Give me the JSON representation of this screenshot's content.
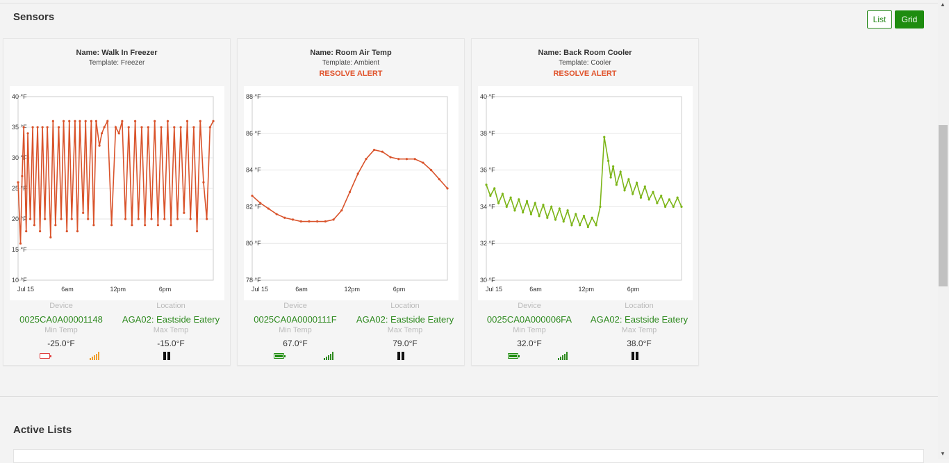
{
  "header": {
    "title": "Sensors",
    "list_label": "List",
    "grid_label": "Grid"
  },
  "chart_common": {
    "x_ticks": [
      "Jul 15",
      "6am",
      "12pm",
      "6pm"
    ]
  },
  "sensors": [
    {
      "name": "Name: Walk In Freezer",
      "template": "Template: Freezer",
      "alert": "",
      "device_label": "Device",
      "device": "0025CA0A00001148",
      "location_label": "Location",
      "location": "AGA02: Eastside Eatery",
      "min_label": "Min Temp",
      "min": "-25.0°F",
      "max_label": "Max Temp",
      "max": "-15.0°F",
      "battery": "low",
      "signal": "weak"
    },
    {
      "name": "Name: Room Air Temp",
      "template": "Template: Ambient",
      "alert": "RESOLVE ALERT",
      "device_label": "Device",
      "device": "0025CA0A0000111F",
      "location_label": "Location",
      "location": "AGA02: Eastside Eatery",
      "min_label": "Min Temp",
      "min": "67.0°F",
      "max_label": "Max Temp",
      "max": "79.0°F",
      "battery": "full",
      "signal": "strong"
    },
    {
      "name": "Name: Back Room Cooler",
      "template": "Template: Cooler",
      "alert": "RESOLVE ALERT",
      "device_label": "Device",
      "device": "0025CA0A000006FA",
      "location_label": "Location",
      "location": "AGA02: Eastside Eatery",
      "min_label": "Min Temp",
      "min": "32.0°F",
      "max_label": "Max Temp",
      "max": "38.0°F",
      "battery": "full",
      "signal": "strong"
    }
  ],
  "chart_data": [
    {
      "type": "line",
      "title": "Walk In Freezer",
      "color": "#d9532b",
      "y_ticks": [
        "10 °F",
        "15 °F",
        "20 °F",
        "25 °F",
        "30 °F",
        "35 °F",
        "40 °F"
      ],
      "ylim": [
        10,
        40
      ],
      "x_range_hours": [
        0,
        24
      ],
      "x": [
        0,
        0.3,
        0.5,
        0.7,
        1.0,
        1.2,
        1.5,
        1.8,
        2.0,
        2.4,
        2.7,
        3.0,
        3.3,
        3.6,
        4.0,
        4.3,
        4.6,
        5.0,
        5.3,
        5.6,
        6.0,
        6.3,
        6.6,
        7.0,
        7.3,
        7.6,
        8.0,
        8.3,
        8.6,
        9.0,
        9.3,
        9.6,
        10.0,
        10.3,
        10.6,
        11.0,
        11.5,
        12.0,
        12.4,
        12.8,
        13.2,
        13.6,
        14.0,
        14.4,
        14.8,
        15.2,
        15.6,
        16.0,
        16.4,
        16.8,
        17.2,
        17.6,
        18.0,
        18.4,
        18.8,
        19.2,
        19.6,
        20.0,
        20.4,
        20.8,
        21.2,
        21.6,
        22.0,
        22.4,
        22.8,
        23.2,
        23.6,
        24.0
      ],
      "values": [
        26,
        16,
        27,
        35,
        18,
        34,
        20,
        35,
        19,
        35,
        18,
        35,
        20,
        35,
        17,
        36,
        19,
        35,
        20,
        36,
        18,
        36,
        20,
        36,
        18,
        36,
        21,
        36,
        20,
        36,
        19,
        36,
        32,
        34,
        35,
        36,
        19,
        35,
        34,
        36,
        20,
        35,
        19,
        36,
        20,
        35,
        19,
        35,
        20,
        36,
        19,
        35,
        20,
        36,
        19,
        35,
        20,
        35,
        21,
        36,
        20,
        35,
        18,
        36,
        26,
        20,
        35,
        36
      ]
    },
    {
      "type": "line",
      "title": "Room Air Temp",
      "color": "#d9532b",
      "y_ticks": [
        "78 °F",
        "80 °F",
        "82 °F",
        "84 °F",
        "86 °F",
        "88 °F"
      ],
      "ylim": [
        78,
        88
      ],
      "x_range_hours": [
        0,
        24
      ],
      "x": [
        0,
        1,
        2,
        3,
        4,
        5,
        6,
        7,
        8,
        9,
        10,
        11,
        12,
        13,
        14,
        15,
        16,
        17,
        18,
        19,
        20,
        21,
        22,
        23,
        24
      ],
      "values": [
        82.6,
        82.2,
        81.9,
        81.6,
        81.4,
        81.3,
        81.2,
        81.2,
        81.2,
        81.2,
        81.3,
        81.8,
        82.8,
        83.8,
        84.6,
        85.1,
        85.0,
        84.7,
        84.6,
        84.6,
        84.6,
        84.4,
        84.0,
        83.5,
        83.0
      ]
    },
    {
      "type": "line",
      "title": "Back Room Cooler",
      "color": "#7cb518",
      "y_ticks": [
        "30 °F",
        "32 °F",
        "34 °F",
        "36 °F",
        "38 °F",
        "40 °F"
      ],
      "ylim": [
        30,
        40
      ],
      "x_range_hours": [
        0,
        24
      ],
      "x": [
        0,
        0.5,
        1,
        1.5,
        2,
        2.5,
        3,
        3.5,
        4,
        4.5,
        5,
        5.5,
        6,
        6.5,
        7,
        7.5,
        8,
        8.5,
        9,
        9.5,
        10,
        10.5,
        11,
        11.5,
        12,
        12.5,
        13,
        13.5,
        14,
        14.5,
        15,
        15.3,
        15.6,
        16,
        16.5,
        17,
        17.5,
        18,
        18.5,
        19,
        19.5,
        20,
        20.5,
        21,
        21.5,
        22,
        22.5,
        23,
        23.5,
        24
      ],
      "values": [
        35.2,
        34.6,
        35.0,
        34.2,
        34.7,
        34.0,
        34.5,
        33.8,
        34.4,
        33.7,
        34.3,
        33.6,
        34.2,
        33.5,
        34.1,
        33.4,
        34.0,
        33.3,
        33.9,
        33.2,
        33.8,
        33.0,
        33.6,
        33.0,
        33.5,
        32.9,
        33.4,
        33.0,
        34.0,
        37.8,
        36.5,
        35.6,
        36.2,
        35.2,
        35.9,
        34.9,
        35.5,
        34.7,
        35.3,
        34.5,
        35.1,
        34.4,
        34.8,
        34.2,
        34.6,
        34.0,
        34.4,
        34.0,
        34.5,
        34.0
      ]
    }
  ],
  "active_lists": {
    "title": "Active Lists"
  }
}
